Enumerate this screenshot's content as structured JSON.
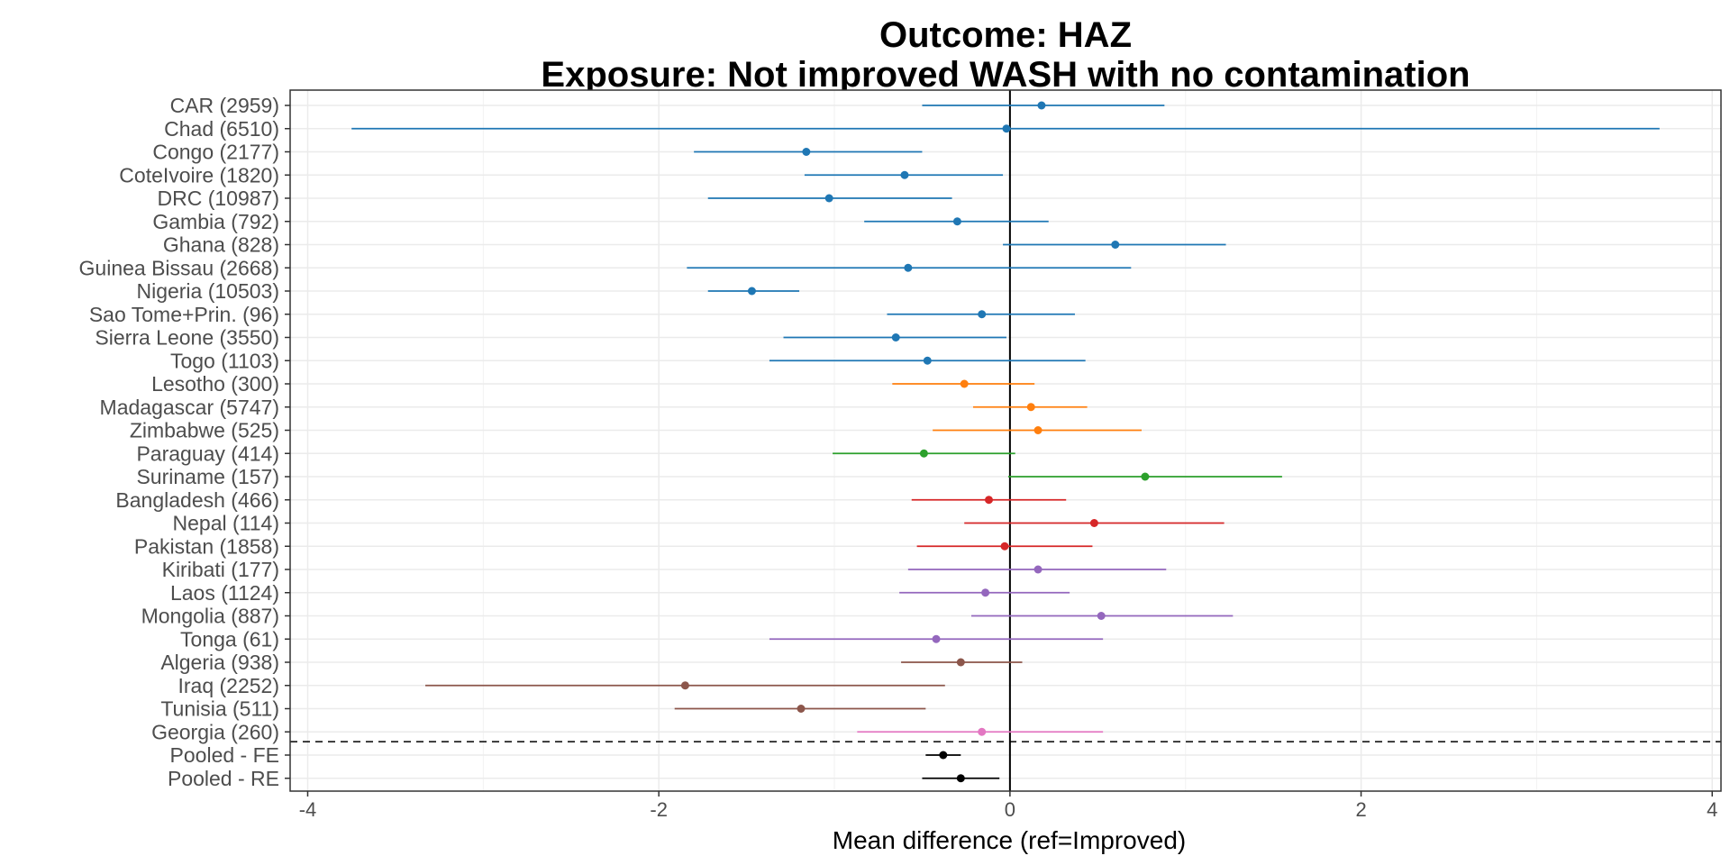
{
  "chart_data": {
    "type": "forest",
    "title": "Outcome: HAZ",
    "subtitle": "Exposure: Not improved WASH with no contamination",
    "xlabel": "Mean difference (ref=Improved)",
    "ylabel": "",
    "xlim": [
      -4.1,
      4.05
    ],
    "xticks": [
      -4,
      -2,
      0,
      2,
      4
    ],
    "xtick_labels": [
      "-4",
      "-2",
      "0",
      "2",
      "4"
    ],
    "grid": true,
    "reference_line": 0,
    "separator": "dashed line above pooled estimates",
    "region_colors": {
      "west_central_africa": "#1f77b4",
      "southern_africa": "#ff7f0e",
      "south_america": "#2ca02c",
      "south_asia": "#d62728",
      "east_asia_pacific": "#9467bd",
      "north_africa_middle_east": "#8c564b",
      "europe": "#e377c2",
      "pooled": "#000000"
    },
    "rows": [
      {
        "label": "CAR (2959)",
        "estimate": 0.18,
        "lower": -0.5,
        "upper": 0.88,
        "color": "#1f77b4"
      },
      {
        "label": "Chad (6510)",
        "estimate": -0.02,
        "lower": -3.75,
        "upper": 3.7,
        "color": "#1f77b4"
      },
      {
        "label": "Congo (2177)",
        "estimate": -1.16,
        "lower": -1.8,
        "upper": -0.5,
        "color": "#1f77b4"
      },
      {
        "label": "CoteIvoire (1820)",
        "estimate": -0.6,
        "lower": -1.17,
        "upper": -0.04,
        "color": "#1f77b4"
      },
      {
        "label": "DRC (10987)",
        "estimate": -1.03,
        "lower": -1.72,
        "upper": -0.33,
        "color": "#1f77b4"
      },
      {
        "label": "Gambia (792)",
        "estimate": -0.3,
        "lower": -0.83,
        "upper": 0.22,
        "color": "#1f77b4"
      },
      {
        "label": "Ghana (828)",
        "estimate": 0.6,
        "lower": -0.04,
        "upper": 1.23,
        "color": "#1f77b4"
      },
      {
        "label": "Guinea Bissau (2668)",
        "estimate": -0.58,
        "lower": -1.84,
        "upper": 0.69,
        "color": "#1f77b4"
      },
      {
        "label": "Nigeria (10503)",
        "estimate": -1.47,
        "lower": -1.72,
        "upper": -1.2,
        "color": "#1f77b4"
      },
      {
        "label": "Sao Tome+Prin. (96)",
        "estimate": -0.16,
        "lower": -0.7,
        "upper": 0.37,
        "color": "#1f77b4"
      },
      {
        "label": "Sierra Leone (3550)",
        "estimate": -0.65,
        "lower": -1.29,
        "upper": -0.02,
        "color": "#1f77b4"
      },
      {
        "label": "Togo (1103)",
        "estimate": -0.47,
        "lower": -1.37,
        "upper": 0.43,
        "color": "#1f77b4"
      },
      {
        "label": "Lesotho (300)",
        "estimate": -0.26,
        "lower": -0.67,
        "upper": 0.14,
        "color": "#ff7f0e"
      },
      {
        "label": "Madagascar (5747)",
        "estimate": 0.12,
        "lower": -0.21,
        "upper": 0.44,
        "color": "#ff7f0e"
      },
      {
        "label": "Zimbabwe (525)",
        "estimate": 0.16,
        "lower": -0.44,
        "upper": 0.75,
        "color": "#ff7f0e"
      },
      {
        "label": "Paraguay (414)",
        "estimate": -0.49,
        "lower": -1.01,
        "upper": 0.03,
        "color": "#2ca02c"
      },
      {
        "label": "Suriname (157)",
        "estimate": 0.77,
        "lower": -0.01,
        "upper": 1.55,
        "color": "#2ca02c"
      },
      {
        "label": "Bangladesh (466)",
        "estimate": -0.12,
        "lower": -0.56,
        "upper": 0.32,
        "color": "#d62728"
      },
      {
        "label": "Nepal (114)",
        "estimate": 0.48,
        "lower": -0.26,
        "upper": 1.22,
        "color": "#d62728"
      },
      {
        "label": "Pakistan (1858)",
        "estimate": -0.03,
        "lower": -0.53,
        "upper": 0.47,
        "color": "#d62728"
      },
      {
        "label": "Kiribati (177)",
        "estimate": 0.16,
        "lower": -0.58,
        "upper": 0.89,
        "color": "#9467bd"
      },
      {
        "label": "Laos (1124)",
        "estimate": -0.14,
        "lower": -0.63,
        "upper": 0.34,
        "color": "#9467bd"
      },
      {
        "label": "Mongolia (887)",
        "estimate": 0.52,
        "lower": -0.22,
        "upper": 1.27,
        "color": "#9467bd"
      },
      {
        "label": "Tonga (61)",
        "estimate": -0.42,
        "lower": -1.37,
        "upper": 0.53,
        "color": "#9467bd"
      },
      {
        "label": "Algeria (938)",
        "estimate": -0.28,
        "lower": -0.62,
        "upper": 0.07,
        "color": "#8c564b"
      },
      {
        "label": "Iraq (2252)",
        "estimate": -1.85,
        "lower": -3.33,
        "upper": -0.37,
        "color": "#8c564b"
      },
      {
        "label": "Tunisia (511)",
        "estimate": -1.19,
        "lower": -1.91,
        "upper": -0.48,
        "color": "#8c564b"
      },
      {
        "label": "Georgia (260)",
        "estimate": -0.16,
        "lower": -0.87,
        "upper": 0.53,
        "color": "#e377c2"
      },
      {
        "label": "Pooled - FE",
        "estimate": -0.38,
        "lower": -0.48,
        "upper": -0.28,
        "color": "#000000"
      },
      {
        "label": "Pooled - RE",
        "estimate": -0.28,
        "lower": -0.5,
        "upper": -0.06,
        "color": "#000000"
      }
    ]
  }
}
